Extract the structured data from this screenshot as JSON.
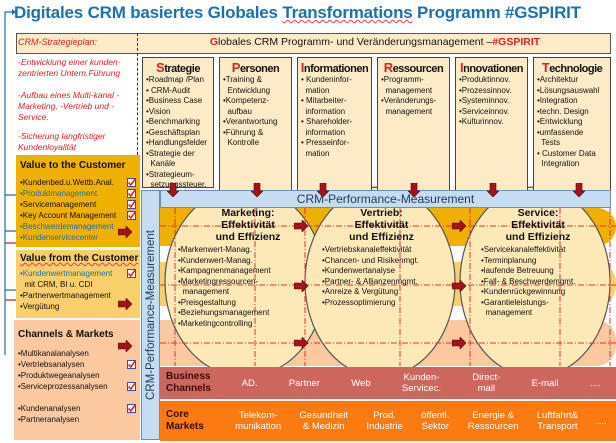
{
  "title": {
    "pre": "Digitales CRM basiertes Globales ",
    "underlined": "Transformations",
    "post": " Programm  #GSPIRIT"
  },
  "header": {
    "left": "CRM-Strategieplan:",
    "right_initial": "G",
    "right_text": "lobales CRM Programm- und Veränderungsmanagement –",
    "right_tag": "#GSPIRIT"
  },
  "goals": [
    "-Entwicklung einer kunden-zentrierten Untern.Führung",
    "-Aufbau eines Multi-kanal -Marketing, -Vertrieb und -Service.",
    "-Sicherung langfristiger Kundenloyalität"
  ],
  "columns": [
    {
      "initial": "S",
      "rest": "trategie",
      "items": [
        "•Roadmap /Plan",
        "• CRM-Audit",
        "•Business Case",
        "•Vision",
        "•Benchmarking",
        "•Geschäftsplan",
        "•Handlungsfelder",
        "•Strategie der",
        "  Kanäle",
        "•Strategieum-",
        "  setzungssteuer."
      ]
    },
    {
      "initial": "P",
      "rest": "ersonen",
      "items": [
        "•Training &",
        "  Entwicklung",
        "•Kompetenz-",
        "  aufbau",
        "•Verantwortung",
        "•Führung &",
        "  Kontrolle"
      ]
    },
    {
      "initial": "I",
      "rest": "nformationen",
      "items": [
        "• Kundeninfor-",
        "  mation",
        "• Mitarbeiter-",
        "  information",
        "• Shareholder-",
        "  information",
        "• Presseinfor-",
        "  mation"
      ]
    },
    {
      "initial": "R",
      "rest": "essourcen",
      "items": [
        "•Programm-",
        "  management",
        "•Veränderungs-",
        "  management"
      ]
    },
    {
      "initial": "I",
      "rest": "nnovationen",
      "items": [
        "•Produktinnov.",
        "•Prozessinnov.",
        "•Systeminnov.",
        "•Serviceinnov.",
        "•Kulturinnov."
      ]
    },
    {
      "initial": "T",
      "rest": "echnologie",
      "items": [
        "•Architektur",
        "•Lösungsauswahl",
        "•Integration",
        "•techn. Design",
        "•Entwicklung",
        "•umfassende",
        "  Tests",
        "• Customer Data",
        "  Integration"
      ]
    }
  ],
  "value_to": {
    "title": "Value to the Customer",
    "items": [
      {
        "t": "•Kundenbed.u.Wettb.Anal.",
        "blue": false,
        "check": true
      },
      {
        "t": "•Produktmanagement",
        "blue": true,
        "check": true
      },
      {
        "t": "•Servicemanagement",
        "blue": false,
        "check": true
      },
      {
        "t": "•Key Account Management",
        "blue": false,
        "check": true
      },
      {
        "t": "•Beschwerdemanagement",
        "blue": true,
        "check": false
      },
      {
        "t": "•Kundenservicecenter",
        "blue": true,
        "check": false
      }
    ]
  },
  "value_from": {
    "title": "Value from the Customer",
    "items": [
      {
        "t": "•Kundenwertmanagement",
        "blue": true,
        "check": true
      },
      {
        "t": "  mit CRM, BI u. CDI",
        "blue": false,
        "check": false
      },
      {
        "t": "•Partnerwertmanagement",
        "blue": false,
        "check": false
      },
      {
        "t": "•Vergütung",
        "blue": false,
        "check": false
      }
    ]
  },
  "channels": {
    "title": "Channels & Markets",
    "items": [
      {
        "t": "•Multikanalanalysen",
        "check": false
      },
      {
        "t": "•Vertriebsanalysen",
        "check": true
      },
      {
        "t": "•Produktwegeanalysen",
        "check": false
      },
      {
        "t": "•Serviceprozessanalysen",
        "check": true
      },
      {
        "t": "",
        "check": false
      },
      {
        "t": "•Kundenanalysen",
        "check": true
      },
      {
        "t": "•Partneranalysen",
        "check": false
      }
    ]
  },
  "measurement": {
    "vertical": "CRM-Performance-Measurement",
    "horizontal": "CRM-Performance-Measurement"
  },
  "ellipses": [
    {
      "title": [
        "Marketing:",
        "Effektivität",
        "und Effizienz"
      ],
      "items": [
        "•Markenwert-Manag.",
        "•Kundenwert-Manag.",
        "•Kampagnenmanagement",
        "•Marketingressourcen-",
        "  management",
        "•Preisgestaltung",
        "•Beziehungsmanagement",
        "•Marketingcontrolling"
      ]
    },
    {
      "title": [
        "Vertrieb:",
        "Effektivität",
        "und Effizienz"
      ],
      "items": [
        "•Vertriebskanaleffektivität",
        "•Chancen- und Risikenmgt.",
        "•Kundenwertanalyse",
        "•Partner- & Allianzenmgmt.",
        "•Anreize & Vergütung",
        "•Prozessoptimierung"
      ]
    },
    {
      "title": [
        "Service:",
        "Effektivität",
        "und Effizienz"
      ],
      "items": [
        "•Servicekanaleffektivität",
        "•Terminplanung",
        "•laufende Betreuung",
        "•Fall- & Beschwerdemgmt.",
        "•Kundenrückgewinnung",
        "•Garantieleistungs-",
        "  management"
      ]
    }
  ],
  "business_channels": {
    "label": [
      "Business",
      "Channels"
    ],
    "items": [
      [
        "AD."
      ],
      [
        "Partner"
      ],
      [
        "Web"
      ],
      [
        "Kunden-",
        "Servicec."
      ],
      [
        "Direct-",
        "mail"
      ],
      [
        "E-mail"
      ],
      [
        "...."
      ]
    ]
  },
  "core_markets": {
    "label": [
      "Core",
      "Markets"
    ],
    "items": [
      [
        "Telekom-",
        "munikation"
      ],
      [
        "Gesundheit",
        "& Medizin"
      ],
      [
        "Prod.",
        "Industrie"
      ],
      [
        "öffentl.",
        "Sektor"
      ],
      [
        "Energie &",
        "Ressourcen"
      ],
      [
        "Luftfahrt&",
        "Transport"
      ],
      [
        "...."
      ]
    ]
  },
  "colors": {
    "title": "#1f6fb0",
    "accent_red": "#e02020",
    "gold": "#f0b000",
    "light_gold": "#f8cf6a",
    "peach": "#fbc8a0",
    "channels": "#cd675d",
    "markets": "#fb7a12",
    "measurement": "#c6dcf0",
    "beige": "#fdebc8"
  }
}
